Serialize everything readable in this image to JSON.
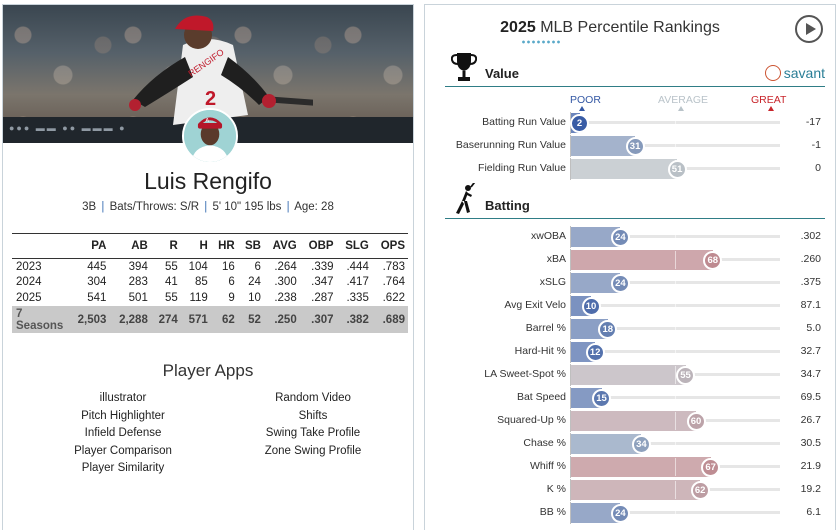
{
  "player": {
    "name": "Luis Rengifo",
    "bio": {
      "position": "3B",
      "bats_throws": "Bats/Throws: S/R",
      "size": "5' 10\" 195 lbs",
      "age": "Age: 28"
    },
    "jersey_name": "RENGIFO",
    "jersey_number": "2"
  },
  "stats_table": {
    "headers": [
      "",
      "PA",
      "AB",
      "R",
      "H",
      "HR",
      "SB",
      "AVG",
      "OBP",
      "SLG",
      "OPS"
    ],
    "rows": [
      [
        "2023",
        "445",
        "394",
        "55",
        "104",
        "16",
        "6",
        ".264",
        ".339",
        ".444",
        ".783"
      ],
      [
        "2024",
        "304",
        "283",
        "41",
        "85",
        "6",
        "24",
        ".300",
        ".347",
        ".417",
        ".764"
      ],
      [
        "2025",
        "541",
        "501",
        "55",
        "119",
        "9",
        "10",
        ".238",
        ".287",
        ".335",
        ".622"
      ]
    ],
    "career": [
      "7 Seasons",
      "2,503",
      "2,288",
      "274",
      "571",
      "62",
      "52",
      ".250",
      ".307",
      ".382",
      ".689"
    ]
  },
  "player_apps": {
    "title": "Player Apps",
    "column_a": [
      "illustrator",
      "Pitch Highlighter",
      "Infield Defense",
      "Player Comparison",
      "Player Similarity"
    ],
    "column_b": [
      "Random Video",
      "Shifts",
      "Swing Take Profile",
      "Zone Swing Profile"
    ]
  },
  "rankings": {
    "title_year": "2025",
    "title_rest": " MLB Percentile Rankings",
    "brand": "savant",
    "scale": {
      "poor": "POOR",
      "average": "AVERAGE",
      "great": "GREAT"
    },
    "colors": {
      "poor": "#3458a4",
      "average": "#b9c3c9",
      "great": "#c8252b",
      "accent": "#2f7d86"
    },
    "sections": [
      {
        "label": "Value",
        "icon": "trophy-icon",
        "metrics": [
          {
            "label": "Batting Run Value",
            "percentile": 2,
            "value": "-17"
          },
          {
            "label": "Baserunning Run Value",
            "percentile": 31,
            "value": "-1"
          },
          {
            "label": "Fielding Run Value",
            "percentile": 51,
            "value": "0"
          }
        ]
      },
      {
        "label": "Batting",
        "icon": "batter-icon",
        "metrics": [
          {
            "label": "xwOBA",
            "percentile": 24,
            "value": ".302"
          },
          {
            "label": "xBA",
            "percentile": 68,
            "value": ".260"
          },
          {
            "label": "xSLG",
            "percentile": 24,
            "value": ".375"
          },
          {
            "label": "Avg Exit Velo",
            "percentile": 10,
            "value": "87.1"
          },
          {
            "label": "Barrel %",
            "percentile": 18,
            "value": "5.0"
          },
          {
            "label": "Hard-Hit %",
            "percentile": 12,
            "value": "32.7"
          },
          {
            "label": "LA Sweet-Spot %",
            "percentile": 55,
            "value": "34.7"
          },
          {
            "label": "Bat Speed",
            "percentile": 15,
            "value": "69.5"
          },
          {
            "label": "Squared-Up %",
            "percentile": 60,
            "value": "26.7"
          },
          {
            "label": "Chase %",
            "percentile": 34,
            "value": "30.5"
          },
          {
            "label": "Whiff %",
            "percentile": 67,
            "value": "21.9"
          },
          {
            "label": "K %",
            "percentile": 62,
            "value": "19.2"
          },
          {
            "label": "BB %",
            "percentile": 24,
            "value": "6.1"
          }
        ]
      }
    ]
  }
}
